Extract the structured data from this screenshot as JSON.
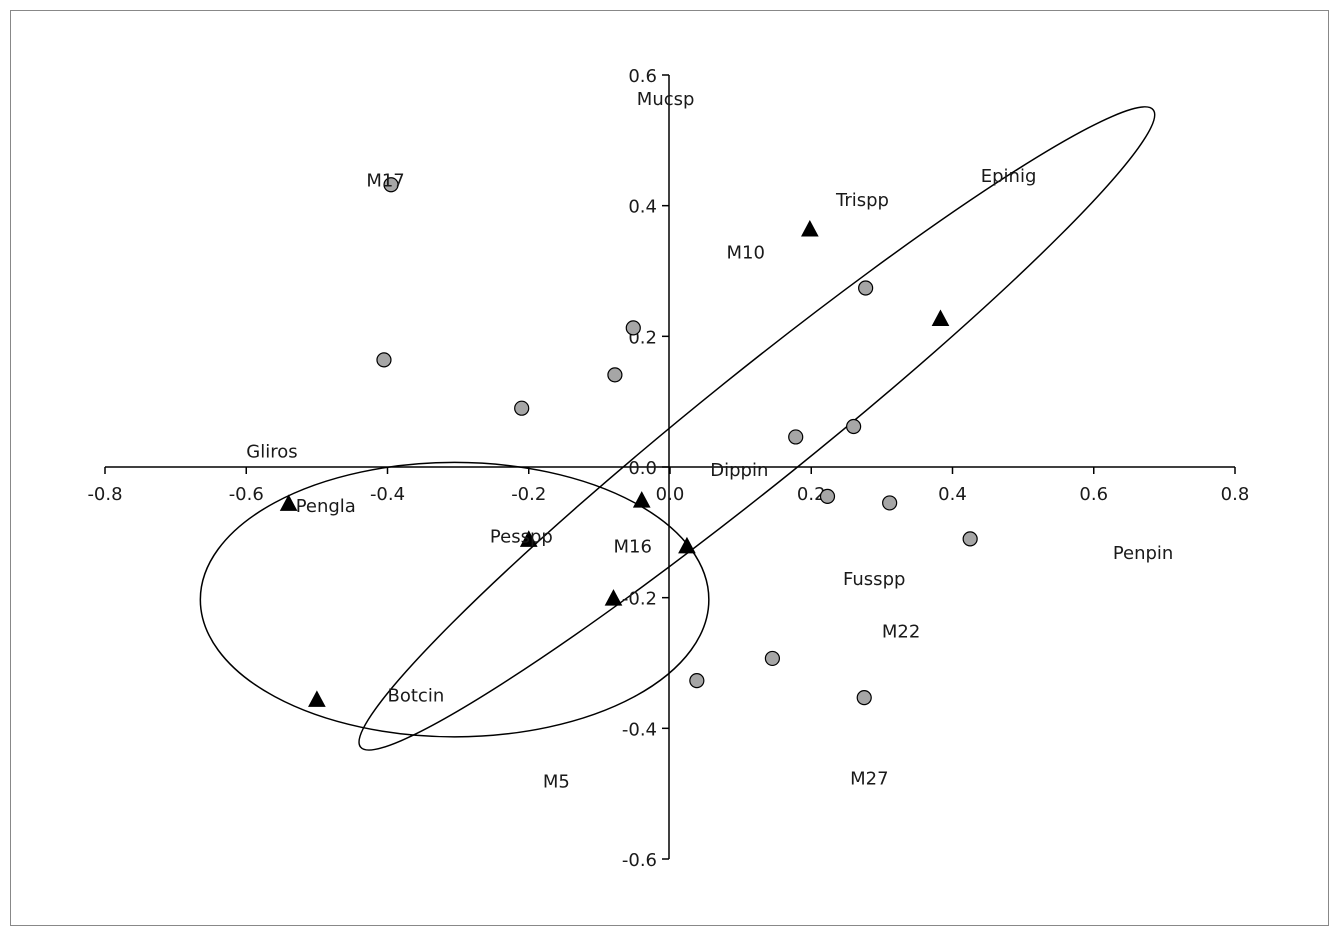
{
  "chart_data": {
    "type": "scatter",
    "title": "",
    "xlabel": "",
    "ylabel": "",
    "xlim": [
      -0.8,
      0.8
    ],
    "ylim": [
      -0.6,
      0.6
    ],
    "x_ticks": [
      {
        "value": -0.8,
        "label": "-0.8"
      },
      {
        "value": -0.6,
        "label": "-0.6"
      },
      {
        "value": -0.4,
        "label": "-0.4"
      },
      {
        "value": -0.2,
        "label": "-0.2"
      },
      {
        "value": 0.0,
        "label": "0.0"
      },
      {
        "value": 0.2,
        "label": "0.2"
      },
      {
        "value": 0.4,
        "label": "0.4"
      },
      {
        "value": 0.6,
        "label": "0.6"
      },
      {
        "value": 0.8,
        "label": "0.8"
      }
    ],
    "y_ticks": [
      {
        "value": 0.6,
        "label": "0.6"
      },
      {
        "value": 0.4,
        "label": "0.4"
      },
      {
        "value": 0.2,
        "label": "0.2"
      },
      {
        "value": 0.0,
        "label": "0.0"
      },
      {
        "value": -0.2,
        "label": "-0.2"
      },
      {
        "value": -0.4,
        "label": "-0.4"
      },
      {
        "value": -0.6,
        "label": "-0.6"
      }
    ],
    "grid": false,
    "legend": "none",
    "colors": {
      "circle_fill": "#a6a6a6",
      "marker_stroke": "#000000",
      "triangle_fill": "#000000",
      "axis": "#000000"
    },
    "series": [
      {
        "marker": "circle",
        "points": [
          {
            "x": -0.395,
            "y": 0.432
          },
          {
            "x": -0.405,
            "y": 0.164
          },
          {
            "x": -0.052,
            "y": 0.213
          },
          {
            "x": -0.078,
            "y": 0.141
          },
          {
            "x": -0.21,
            "y": 0.09
          },
          {
            "x": 0.178,
            "y": 0.046
          },
          {
            "x": 0.26,
            "y": 0.062
          },
          {
            "x": 0.277,
            "y": 0.274
          },
          {
            "x": 0.223,
            "y": -0.045
          },
          {
            "x": 0.311,
            "y": -0.055
          },
          {
            "x": 0.425,
            "y": -0.11
          },
          {
            "x": 0.145,
            "y": -0.293
          },
          {
            "x": 0.038,
            "y": -0.327
          },
          {
            "x": 0.275,
            "y": -0.353
          }
        ]
      },
      {
        "marker": "triangle",
        "points": [
          {
            "x": 0.198,
            "y": 0.365
          },
          {
            "x": 0.383,
            "y": 0.228
          },
          {
            "x": -0.54,
            "y": -0.055
          },
          {
            "x": -0.04,
            "y": -0.05
          },
          {
            "x": -0.2,
            "y": -0.11
          },
          {
            "x": 0.024,
            "y": -0.12
          },
          {
            "x": -0.08,
            "y": -0.2
          },
          {
            "x": -0.5,
            "y": -0.355
          }
        ]
      }
    ],
    "point_labels": [
      {
        "text": "Mucsp",
        "x": -0.047,
        "y": 0.565
      },
      {
        "text": "M17",
        "x": -0.43,
        "y": 0.44
      },
      {
        "text": "Trispp",
        "x": 0.235,
        "y": 0.41
      },
      {
        "text": "Epinig",
        "x": 0.44,
        "y": 0.447
      },
      {
        "text": "M10",
        "x": 0.08,
        "y": 0.33
      },
      {
        "text": "Gliros",
        "x": -0.6,
        "y": 0.025
      },
      {
        "text": "Pengla",
        "x": -0.53,
        "y": -0.058
      },
      {
        "text": "Dippin",
        "x": 0.057,
        "y": -0.003
      },
      {
        "text": "Pesspp",
        "x": -0.255,
        "y": -0.105
      },
      {
        "text": "M16",
        "x": -0.08,
        "y": -0.12
      },
      {
        "text": "Penpin",
        "x": 0.627,
        "y": -0.13
      },
      {
        "text": "Fusspp",
        "x": 0.245,
        "y": -0.17
      },
      {
        "text": "M22",
        "x": 0.3,
        "y": -0.25
      },
      {
        "text": "Botcin",
        "x": -0.4,
        "y": -0.348
      },
      {
        "text": "M5",
        "x": -0.18,
        "y": -0.48
      },
      {
        "text": "M27",
        "x": 0.255,
        "y": -0.475
      }
    ],
    "ellipses": [
      {
        "cx": 0.123,
        "cy": 0.059,
        "rx": 0.72,
        "ry": 0.085,
        "angle_deg": -38.8
      },
      {
        "cx": -0.305,
        "cy": -0.203,
        "rx": 0.36,
        "ry": 0.21,
        "angle_deg": 0
      }
    ]
  }
}
